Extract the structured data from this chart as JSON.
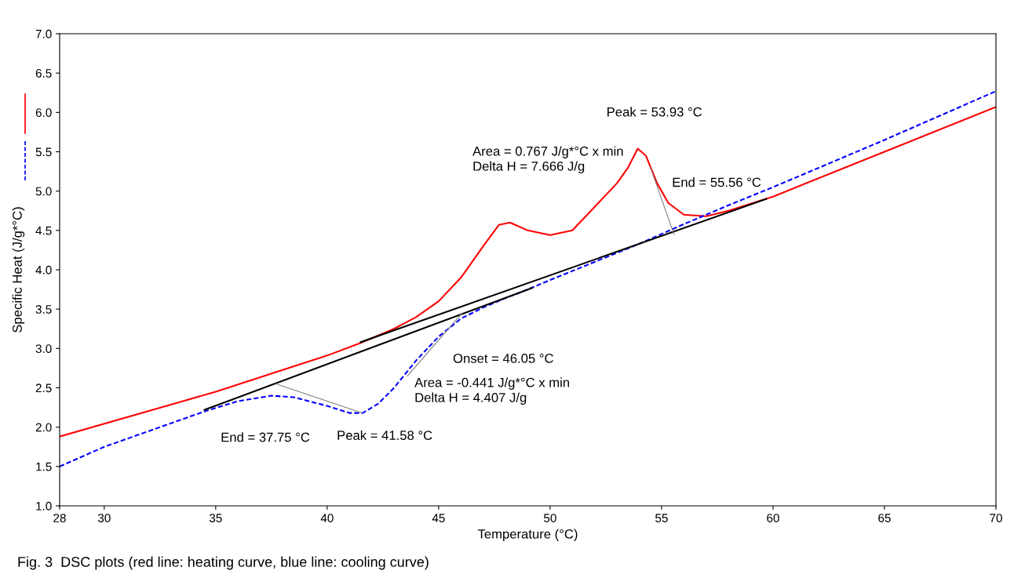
{
  "chart_data": {
    "type": "line",
    "xlabel": "Temperature (°C)",
    "ylabel": "Specific Heat (J/g*°C)",
    "xlim": [
      28,
      70
    ],
    "xticks": [
      28,
      30,
      35,
      40,
      45,
      50,
      55,
      60,
      65,
      70
    ],
    "ylim": [
      1.0,
      7.0
    ],
    "yticks": [
      {
        "value": 1.0,
        "label": "1.0"
      },
      {
        "value": 1.5,
        "label": "1.5"
      },
      {
        "value": 2.0,
        "label": "2.0"
      },
      {
        "value": 2.5,
        "label": "2.5"
      },
      {
        "value": 3.0,
        "label": "3.0"
      },
      {
        "value": 3.5,
        "label": "3.5"
      },
      {
        "value": 4.0,
        "label": "4.0"
      },
      {
        "value": 4.5,
        "label": "4.5"
      },
      {
        "value": 5.0,
        "label": "5.0"
      },
      {
        "value": 5.5,
        "label": "5.5"
      },
      {
        "value": 6.0,
        "label": "6.0"
      },
      {
        "value": 6.5,
        "label": "6.5"
      },
      {
        "value": 7.0,
        "label": "7.0"
      }
    ],
    "grid": false,
    "legend": false,
    "series": [
      {
        "color": "#ff0000",
        "line_style": "solid",
        "x": [
          28,
          35,
          40,
          41.5,
          43,
          44,
          45,
          46,
          47,
          47.7,
          48.2,
          49,
          50,
          51,
          52,
          53,
          53.5,
          53.93,
          54.3,
          54.8,
          55.3,
          56,
          57,
          58,
          60,
          65,
          70
        ],
        "values": [
          1.88,
          2.45,
          2.91,
          3.07,
          3.25,
          3.4,
          3.6,
          3.9,
          4.3,
          4.57,
          4.6,
          4.5,
          4.44,
          4.5,
          4.8,
          5.1,
          5.3,
          5.54,
          5.45,
          5.1,
          4.85,
          4.7,
          4.68,
          4.75,
          4.93,
          5.5,
          6.07
        ]
      },
      {
        "color": "#0000ff",
        "line_style": "dashed",
        "x": [
          28,
          30,
          32,
          34.5,
          36,
          37.5,
          38.5,
          40,
          41,
          41.6,
          42.3,
          43,
          44,
          45,
          46,
          47,
          48,
          49,
          50,
          52,
          54,
          56,
          58,
          60,
          65,
          70
        ],
        "values": [
          1.5,
          1.75,
          1.95,
          2.2,
          2.33,
          2.4,
          2.38,
          2.27,
          2.18,
          2.18,
          2.3,
          2.5,
          2.85,
          3.15,
          3.38,
          3.52,
          3.64,
          3.75,
          3.87,
          4.1,
          4.33,
          4.58,
          4.82,
          5.05,
          5.65,
          6.27
        ]
      },
      {
        "color": "#000000",
        "line_style": "solid",
        "x": [
          34.5,
          49.2
        ],
        "values": [
          2.22,
          3.77
        ]
      },
      {
        "color": "#000000",
        "line_style": "solid",
        "x": [
          41.5,
          59.7
        ],
        "values": [
          3.08,
          4.9
        ]
      },
      {
        "color": "#808080",
        "line_style": "solid",
        "x": [
          37.7,
          41.58
        ],
        "values": [
          2.55,
          2.18
        ]
      },
      {
        "color": "#808080",
        "line_style": "solid",
        "x": [
          43.6,
          46.05
        ],
        "values": [
          2.65,
          3.45
        ]
      },
      {
        "color": "#808080",
        "line_style": "solid",
        "x": [
          54.5,
          55.56
        ],
        "values": [
          5.3,
          4.45
        ]
      }
    ],
    "annotations": [
      "Peak = 53.93 °C",
      "Area = 0.767 J/g*°C x min\nDelta H = 7.666 J/g",
      "End = 55.56 °C",
      "Onset = 46.05 °C",
      "Area = -0.441 J/g*°C x min\nDelta H = 4.407 J/g",
      "End = 37.75 °C",
      "Peak = 41.58 °C",
      "Fig. 3  DSC plots (red line: heating curve, blue line: cooling curve)"
    ]
  }
}
